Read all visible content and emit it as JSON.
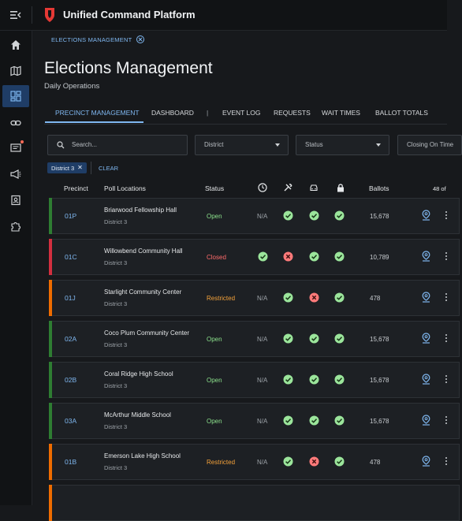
{
  "app": {
    "title": "Unified Command Platform"
  },
  "sidebar": {
    "items": [
      {
        "name": "home-icon"
      },
      {
        "name": "map-icon"
      },
      {
        "name": "dashboard-icon"
      },
      {
        "name": "link-icon"
      },
      {
        "name": "message-icon"
      },
      {
        "name": "megaphone-icon"
      },
      {
        "name": "contact-icon"
      },
      {
        "name": "puzzle-icon"
      }
    ],
    "active_index": 2
  },
  "breadcrumb": {
    "label": "ELECTIONS MANAGEMENT"
  },
  "page": {
    "title": "Elections Management",
    "subtitle": "Daily Operations"
  },
  "tabs": {
    "items": [
      "PRECINCT MANAGEMENT",
      "DASHBOARD",
      "EVENT LOG",
      "REQUESTS",
      "WAIT TIMES",
      "BALLOT TOTALS"
    ],
    "separator": "|",
    "active": "PRECINCT MANAGEMENT"
  },
  "filters": {
    "search_placeholder": "Search...",
    "district_label": "District",
    "status_label": "Status",
    "closing_label": "Closing On Time"
  },
  "active_filter": {
    "chip_label": "District 3",
    "clear_label": "CLEAR"
  },
  "table": {
    "headers": {
      "precinct": "Precinct",
      "location": "Poll Locations",
      "status": "Status",
      "ballots": "Ballots"
    },
    "icon_headers": [
      "clock-icon",
      "tools-icon",
      "car-icon",
      "lock-icon"
    ],
    "count_text": "48 of",
    "rows": [
      {
        "precinct": "01P",
        "name": "Briarwood Fellowship Hall",
        "district": "District 3",
        "status": "Open",
        "clock": "N/A",
        "tools": "ok",
        "car": "ok",
        "lock": "ok",
        "ballots": "15,678"
      },
      {
        "precinct": "01C",
        "name": "Willowbend Community Hall",
        "district": "District 3",
        "status": "Closed",
        "clock": "ok",
        "tools": "error",
        "car": "ok",
        "lock": "ok",
        "ballots": "10,789"
      },
      {
        "precinct": "01J",
        "name": "Starlight Community Center",
        "district": "District 3",
        "status": "Restricted",
        "clock": "N/A",
        "tools": "ok",
        "car": "error",
        "lock": "ok",
        "ballots": "478"
      },
      {
        "precinct": "02A",
        "name": "Coco Plum Community Center",
        "district": "District 3",
        "status": "Open",
        "clock": "N/A",
        "tools": "ok",
        "car": "ok",
        "lock": "ok",
        "ballots": "15,678"
      },
      {
        "precinct": "02B",
        "name": "Coral Ridge High School",
        "district": "District 3",
        "status": "Open",
        "clock": "N/A",
        "tools": "ok",
        "car": "ok",
        "lock": "ok",
        "ballots": "15,678"
      },
      {
        "precinct": "03A",
        "name": "McArthur Middle School",
        "district": "District 3",
        "status": "Open",
        "clock": "N/A",
        "tools": "ok",
        "car": "ok",
        "lock": "ok",
        "ballots": "15,678"
      },
      {
        "precinct": "01B",
        "name": "Emerson Lake High School",
        "district": "District 3",
        "status": "Restricted",
        "clock": "N/A",
        "tools": "ok",
        "car": "error",
        "lock": "ok",
        "ballots": "478"
      }
    ]
  },
  "colors": {
    "accent": "#7fb7f0",
    "open": "#8be08b",
    "closed": "#ff6b6b",
    "restricted": "#f5a23a",
    "bar_open": "#2e7d32",
    "bar_closed": "#d32f3f",
    "bar_restricted": "#ef6c00",
    "check_bg": "#9be59b",
    "error_bg": "#ff7a7a"
  }
}
